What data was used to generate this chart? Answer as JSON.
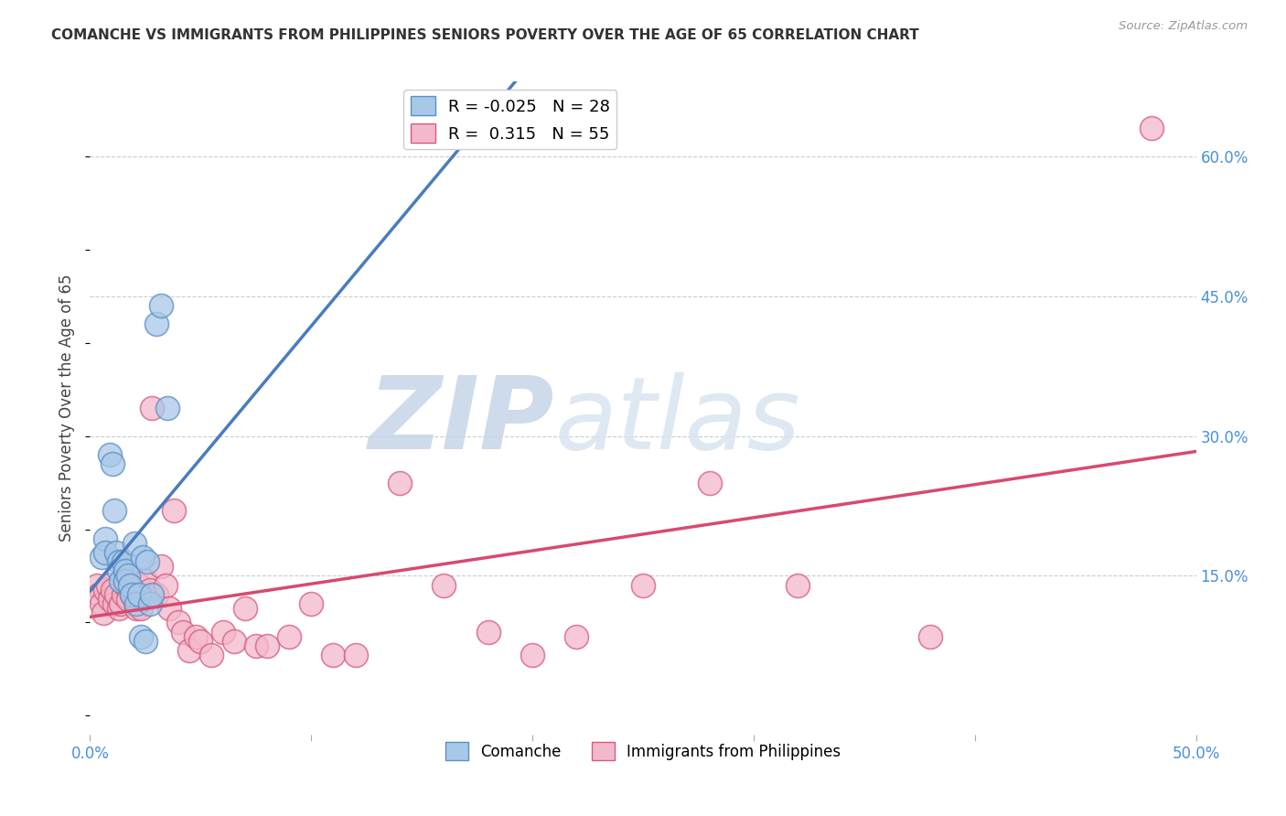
{
  "title": "COMANCHE VS IMMIGRANTS FROM PHILIPPINES SENIORS POVERTY OVER THE AGE OF 65 CORRELATION CHART",
  "source": "Source: ZipAtlas.com",
  "ylabel": "Seniors Poverty Over the Age of 65",
  "xlim": [
    0.0,
    0.5
  ],
  "ylim": [
    -0.02,
    0.68
  ],
  "comanche_R": -0.025,
  "comanche_N": 28,
  "philippines_R": 0.315,
  "philippines_N": 55,
  "blue_fill": "#a8c8e8",
  "blue_edge": "#5b8ec4",
  "pink_fill": "#f4b8cc",
  "pink_edge": "#d45c7a",
  "blue_line": "#4a7bbf",
  "pink_line": "#d64a70",
  "blue_dash": "#7aaad0",
  "watermark_zip": "#c8d8ec",
  "watermark_atlas": "#c8d8e8",
  "grid_color": "#cccccc",
  "right_tick_color": "#4a90d9",
  "comanche_x": [
    0.005,
    0.007,
    0.007,
    0.009,
    0.01,
    0.011,
    0.012,
    0.013,
    0.013,
    0.014,
    0.015,
    0.016,
    0.016,
    0.017,
    0.018,
    0.019,
    0.02,
    0.021,
    0.022,
    0.023,
    0.024,
    0.025,
    0.026,
    0.027,
    0.028,
    0.03,
    0.032,
    0.035
  ],
  "comanche_y": [
    0.17,
    0.19,
    0.175,
    0.28,
    0.27,
    0.22,
    0.175,
    0.165,
    0.155,
    0.145,
    0.165,
    0.155,
    0.145,
    0.15,
    0.14,
    0.13,
    0.185,
    0.12,
    0.13,
    0.085,
    0.17,
    0.08,
    0.165,
    0.12,
    0.13,
    0.42,
    0.44,
    0.33
  ],
  "philippines_x": [
    0.003,
    0.004,
    0.005,
    0.006,
    0.007,
    0.008,
    0.009,
    0.01,
    0.011,
    0.012,
    0.013,
    0.014,
    0.015,
    0.016,
    0.017,
    0.018,
    0.019,
    0.02,
    0.021,
    0.022,
    0.023,
    0.024,
    0.025,
    0.027,
    0.028,
    0.03,
    0.032,
    0.034,
    0.036,
    0.038,
    0.04,
    0.042,
    0.045,
    0.048,
    0.05,
    0.055,
    0.06,
    0.065,
    0.07,
    0.075,
    0.08,
    0.09,
    0.1,
    0.11,
    0.12,
    0.14,
    0.16,
    0.18,
    0.2,
    0.22,
    0.25,
    0.28,
    0.32,
    0.38,
    0.48
  ],
  "philippines_y": [
    0.14,
    0.13,
    0.12,
    0.11,
    0.135,
    0.14,
    0.125,
    0.135,
    0.12,
    0.13,
    0.115,
    0.12,
    0.13,
    0.14,
    0.125,
    0.145,
    0.13,
    0.125,
    0.115,
    0.14,
    0.115,
    0.125,
    0.145,
    0.135,
    0.33,
    0.13,
    0.16,
    0.14,
    0.115,
    0.22,
    0.1,
    0.09,
    0.07,
    0.085,
    0.08,
    0.065,
    0.09,
    0.08,
    0.115,
    0.075,
    0.075,
    0.085,
    0.12,
    0.065,
    0.065,
    0.25,
    0.14,
    0.09,
    0.065,
    0.085,
    0.14,
    0.25,
    0.14,
    0.085,
    0.63
  ]
}
